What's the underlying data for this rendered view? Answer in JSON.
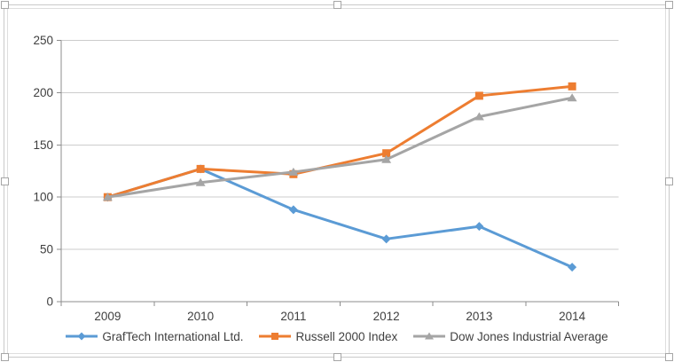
{
  "chart_data": {
    "type": "line",
    "title": "",
    "xlabel": "",
    "ylabel": "",
    "categories": [
      "2009",
      "2010",
      "2011",
      "2012",
      "2013",
      "2014"
    ],
    "series": [
      {
        "name": "GrafTech International Ltd.",
        "color": "#5b9bd5",
        "marker": "diamond",
        "values": [
          100,
          127,
          88,
          60,
          72,
          33
        ]
      },
      {
        "name": "Russell 2000 Index",
        "color": "#ed7d31",
        "marker": "square",
        "values": [
          100,
          127,
          122,
          142,
          197,
          206
        ]
      },
      {
        "name": "Dow Jones Industrial Average",
        "color": "#a5a5a5",
        "marker": "triangle",
        "values": [
          100,
          114,
          124,
          136,
          177,
          195
        ]
      }
    ],
    "ylim": [
      0,
      250
    ],
    "yticks": [
      0,
      50,
      100,
      150,
      200,
      250
    ],
    "grid": true,
    "legend_position": "bottom",
    "colors": {
      "axis_line": "#8c8c8c",
      "gridline": "#cccccc",
      "tick_label": "#3f3f3f",
      "selection_frame": "#c9c9c9",
      "chart_border": "#dedede"
    }
  }
}
